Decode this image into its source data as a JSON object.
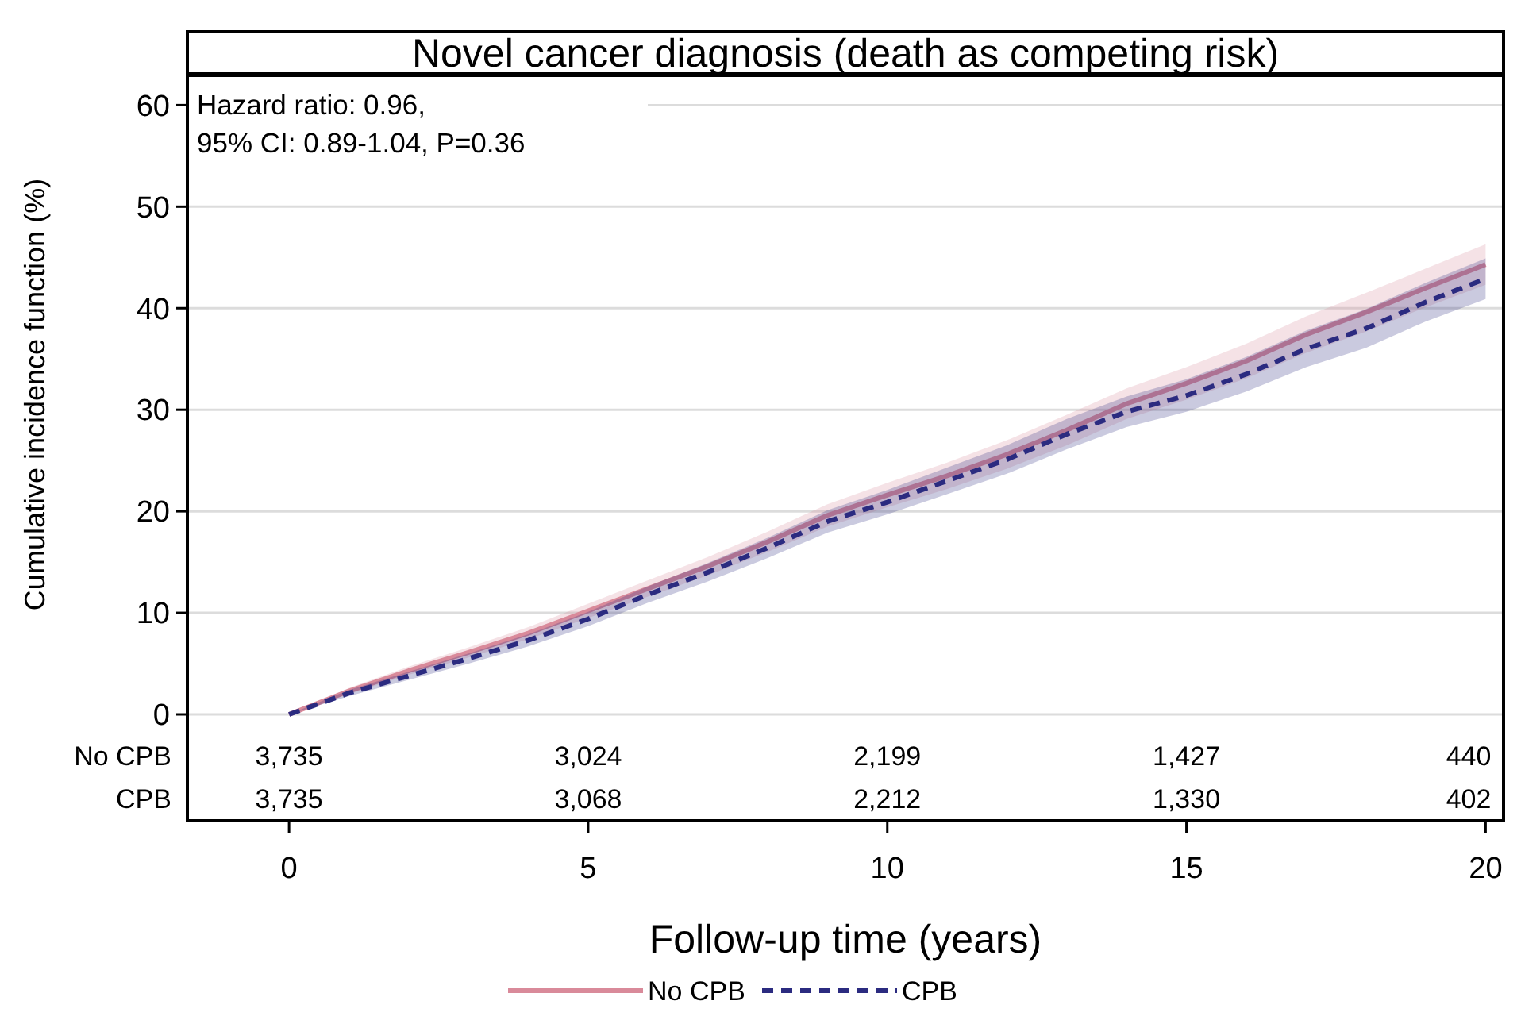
{
  "chart_data": {
    "type": "line",
    "title": "Novel cancer diagnosis (death as competing risk)",
    "xlabel": "Follow-up time (years)",
    "ylabel": "Cumulative incidence function (%)",
    "x": [
      0,
      1,
      2,
      3,
      4,
      5,
      6,
      7,
      8,
      9,
      10,
      11,
      12,
      13,
      14,
      15,
      16,
      17,
      18,
      19,
      20
    ],
    "series": [
      {
        "name": "No CPB",
        "color": "#d98a9a",
        "line_style": "solid",
        "values": [
          0,
          2.3,
          4.3,
          6.1,
          8.0,
          10.2,
          12.4,
          14.6,
          17.0,
          19.6,
          21.6,
          23.5,
          25.6,
          28.0,
          30.6,
          32.6,
          34.8,
          37.4,
          39.6,
          42.0,
          44.3
        ],
        "lower": [
          0,
          2.0,
          3.9,
          5.6,
          7.4,
          9.5,
          11.6,
          13.7,
          16.0,
          18.5,
          20.4,
          22.2,
          24.2,
          26.5,
          29.1,
          31.0,
          33.1,
          35.6,
          37.7,
          40.1,
          42.3
        ],
        "upper": [
          0,
          2.6,
          4.7,
          6.6,
          8.6,
          10.9,
          13.2,
          15.5,
          18.0,
          20.7,
          22.8,
          24.8,
          27.0,
          29.5,
          32.1,
          34.2,
          36.5,
          39.2,
          41.5,
          43.9,
          46.3
        ]
      },
      {
        "name": "CPB",
        "color": "#2b2b80",
        "line_style": "dashed",
        "values": [
          0,
          2.1,
          3.8,
          5.5,
          7.3,
          9.4,
          11.8,
          14.0,
          16.4,
          19.0,
          20.9,
          23.0,
          25.1,
          27.6,
          29.8,
          31.4,
          33.5,
          36.0,
          38.0,
          40.6,
          42.9
        ],
        "lower": [
          0,
          1.8,
          3.4,
          5.0,
          6.7,
          8.7,
          11.0,
          13.1,
          15.4,
          17.9,
          19.7,
          21.7,
          23.7,
          26.1,
          28.3,
          29.8,
          31.8,
          34.2,
          36.1,
          38.7,
          40.9
        ],
        "upper": [
          0,
          2.4,
          4.2,
          6.0,
          7.9,
          10.1,
          12.6,
          14.9,
          17.4,
          20.1,
          22.1,
          24.3,
          26.5,
          29.1,
          31.3,
          33.0,
          35.2,
          37.8,
          39.9,
          42.5,
          44.9
        ]
      }
    ],
    "xlim": [
      -1.7,
      20.3
    ],
    "xticks": [
      0,
      5,
      10,
      15,
      20
    ],
    "ylim": [
      0,
      63
    ],
    "yticks": [
      0,
      10,
      20,
      30,
      40,
      50,
      60
    ],
    "grid": "y",
    "legend": "bottom",
    "annotations": [
      "Hazard ratio: 0.96,\n95% CI: 0.89-1.04, P=0.36",
      "3,735",
      "3,024",
      "2,199",
      "1,427",
      "440",
      "3,735",
      "3,068",
      "2,212",
      "1,330",
      "402"
    ]
  }
}
